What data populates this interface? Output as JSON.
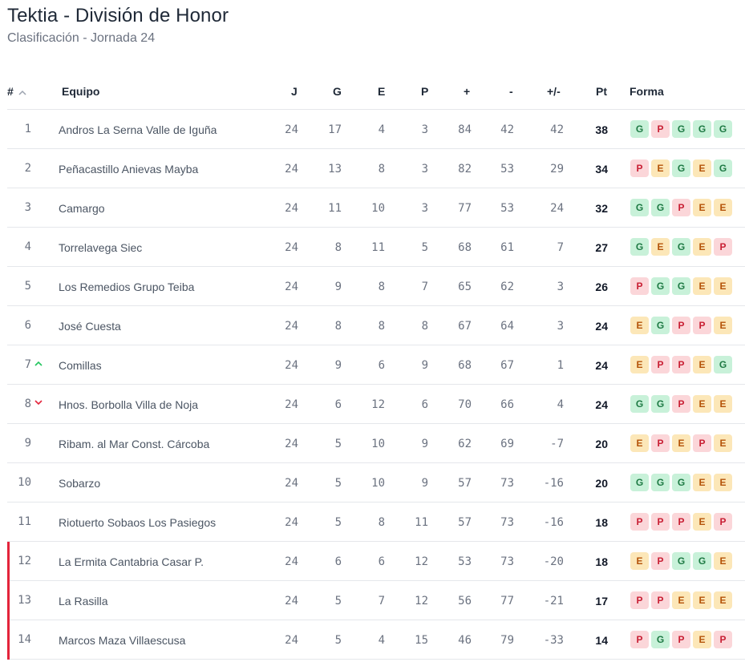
{
  "header": {
    "title": "Tektia - División de Honor",
    "subtitle": "Clasificación - Jornada 24"
  },
  "columns": {
    "pos": "#",
    "team": "Equipo",
    "j": "J",
    "g": "G",
    "e": "E",
    "p": "P",
    "gf": "+",
    "ga": "-",
    "diff": "+/-",
    "pt": "Pt",
    "form": "Forma"
  },
  "colors": {
    "relegation": "#e3243b",
    "win": "#1e7a44",
    "loss": "#c81e33",
    "draw": "#b45309",
    "up": "#22c55e",
    "down": "#e3243b"
  },
  "rows": [
    {
      "pos": "1",
      "team": "Andros La Serna Valle de Iguña",
      "j": "24",
      "g": "17",
      "e": "4",
      "p": "3",
      "gf": "84",
      "ga": "42",
      "diff": "42",
      "pt": "38",
      "form": [
        "G",
        "P",
        "G",
        "G",
        "G"
      ],
      "trend": "",
      "zone": ""
    },
    {
      "pos": "2",
      "team": "Peñacastillo Anievas Mayba",
      "j": "24",
      "g": "13",
      "e": "8",
      "p": "3",
      "gf": "82",
      "ga": "53",
      "diff": "29",
      "pt": "34",
      "form": [
        "P",
        "E",
        "G",
        "E",
        "G"
      ],
      "trend": "",
      "zone": ""
    },
    {
      "pos": "3",
      "team": "Camargo",
      "j": "24",
      "g": "11",
      "e": "10",
      "p": "3",
      "gf": "77",
      "ga": "53",
      "diff": "24",
      "pt": "32",
      "form": [
        "G",
        "G",
        "P",
        "E",
        "E"
      ],
      "trend": "",
      "zone": ""
    },
    {
      "pos": "4",
      "team": "Torrelavega Siec",
      "j": "24",
      "g": "8",
      "e": "11",
      "p": "5",
      "gf": "68",
      "ga": "61",
      "diff": "7",
      "pt": "27",
      "form": [
        "G",
        "E",
        "G",
        "E",
        "P"
      ],
      "trend": "",
      "zone": ""
    },
    {
      "pos": "5",
      "team": "Los Remedios Grupo Teiba",
      "j": "24",
      "g": "9",
      "e": "8",
      "p": "7",
      "gf": "65",
      "ga": "62",
      "diff": "3",
      "pt": "26",
      "form": [
        "P",
        "G",
        "G",
        "E",
        "E"
      ],
      "trend": "",
      "zone": ""
    },
    {
      "pos": "6",
      "team": "José Cuesta",
      "j": "24",
      "g": "8",
      "e": "8",
      "p": "8",
      "gf": "67",
      "ga": "64",
      "diff": "3",
      "pt": "24",
      "form": [
        "E",
        "G",
        "P",
        "P",
        "E"
      ],
      "trend": "",
      "zone": ""
    },
    {
      "pos": "7",
      "team": "Comillas",
      "j": "24",
      "g": "9",
      "e": "6",
      "p": "9",
      "gf": "68",
      "ga": "67",
      "diff": "1",
      "pt": "24",
      "form": [
        "E",
        "P",
        "P",
        "E",
        "G"
      ],
      "trend": "up",
      "zone": ""
    },
    {
      "pos": "8",
      "team": "Hnos. Borbolla Villa de Noja",
      "j": "24",
      "g": "6",
      "e": "12",
      "p": "6",
      "gf": "70",
      "ga": "66",
      "diff": "4",
      "pt": "24",
      "form": [
        "G",
        "G",
        "P",
        "E",
        "E"
      ],
      "trend": "down",
      "zone": ""
    },
    {
      "pos": "9",
      "team": "Ribam. al Mar Const. Cárcoba",
      "j": "24",
      "g": "5",
      "e": "10",
      "p": "9",
      "gf": "62",
      "ga": "69",
      "diff": "-7",
      "pt": "20",
      "form": [
        "E",
        "P",
        "E",
        "P",
        "E"
      ],
      "trend": "",
      "zone": ""
    },
    {
      "pos": "10",
      "team": "Sobarzo",
      "j": "24",
      "g": "5",
      "e": "10",
      "p": "9",
      "gf": "57",
      "ga": "73",
      "diff": "-16",
      "pt": "20",
      "form": [
        "G",
        "G",
        "G",
        "E",
        "E"
      ],
      "trend": "",
      "zone": ""
    },
    {
      "pos": "11",
      "team": "Riotuerto Sobaos Los Pasiegos",
      "j": "24",
      "g": "5",
      "e": "8",
      "p": "11",
      "gf": "57",
      "ga": "73",
      "diff": "-16",
      "pt": "18",
      "form": [
        "P",
        "P",
        "P",
        "E",
        "P"
      ],
      "trend": "",
      "zone": ""
    },
    {
      "pos": "12",
      "team": "La Ermita Cantabria Casar P.",
      "j": "24",
      "g": "6",
      "e": "6",
      "p": "12",
      "gf": "53",
      "ga": "73",
      "diff": "-20",
      "pt": "18",
      "form": [
        "E",
        "P",
        "G",
        "G",
        "E"
      ],
      "trend": "",
      "zone": "relegation"
    },
    {
      "pos": "13",
      "team": "La Rasilla",
      "j": "24",
      "g": "5",
      "e": "7",
      "p": "12",
      "gf": "56",
      "ga": "77",
      "diff": "-21",
      "pt": "17",
      "form": [
        "P",
        "P",
        "E",
        "E",
        "E"
      ],
      "trend": "",
      "zone": "relegation"
    },
    {
      "pos": "14",
      "team": "Marcos Maza Villaescusa",
      "j": "24",
      "g": "5",
      "e": "4",
      "p": "15",
      "gf": "46",
      "ga": "79",
      "diff": "-33",
      "pt": "14",
      "form": [
        "P",
        "G",
        "P",
        "E",
        "P"
      ],
      "trend": "",
      "zone": "relegation"
    }
  ]
}
